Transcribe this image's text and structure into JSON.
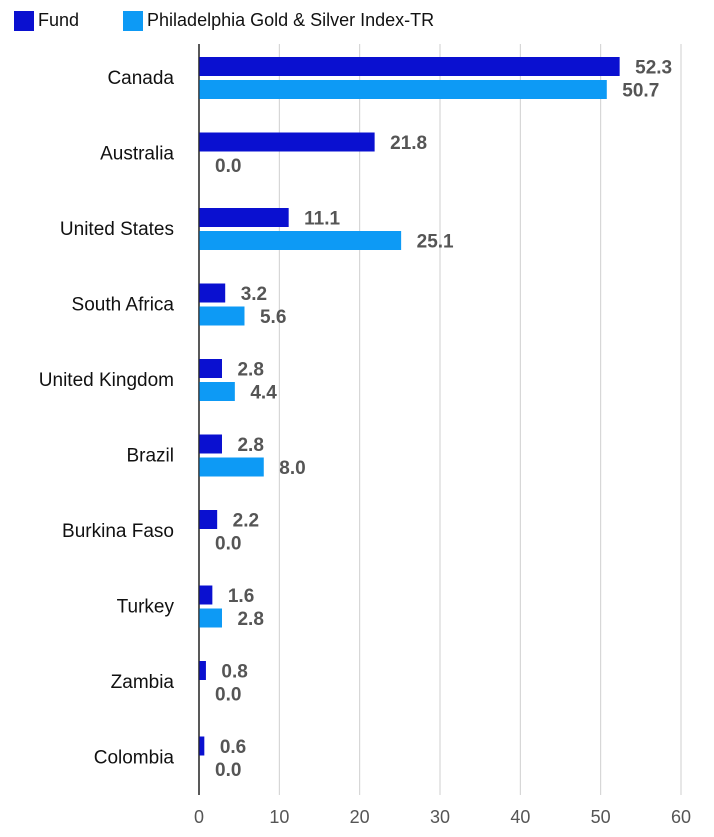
{
  "chart_data": {
    "type": "bar",
    "orientation": "horizontal",
    "title": "",
    "xlabel": "",
    "ylabel": "",
    "xlim": [
      0,
      60
    ],
    "xticks": [
      "0",
      "10",
      "20",
      "30",
      "40",
      "50",
      "60"
    ],
    "grid": true,
    "legend_position": "top-left",
    "categories": [
      "Canada",
      "Australia",
      "United States",
      "South Africa",
      "United Kingdom",
      "Brazil",
      "Burkina Faso",
      "Turkey",
      "Zambia",
      "Colombia"
    ],
    "series": [
      {
        "name": "Fund",
        "color": "#0a10d0",
        "values": [
          52.3,
          21.8,
          11.1,
          3.2,
          2.8,
          2.8,
          2.2,
          1.6,
          0.8,
          0.6
        ],
        "labels": [
          "52.3",
          "21.8",
          "11.1",
          "3.2",
          "2.8",
          "2.8",
          "2.2",
          "1.6",
          "0.8",
          "0.6"
        ]
      },
      {
        "name": "Philadelphia Gold & Silver Index-TR",
        "color": "#0d9af5",
        "values": [
          50.7,
          0.0,
          25.1,
          5.6,
          4.4,
          8.0,
          0.0,
          2.8,
          0.0,
          0.0
        ],
        "labels": [
          "50.7",
          "0.0",
          "25.1",
          "5.6",
          "4.4",
          "8.0",
          "0.0",
          "2.8",
          "0.0",
          "0.0"
        ]
      }
    ]
  }
}
